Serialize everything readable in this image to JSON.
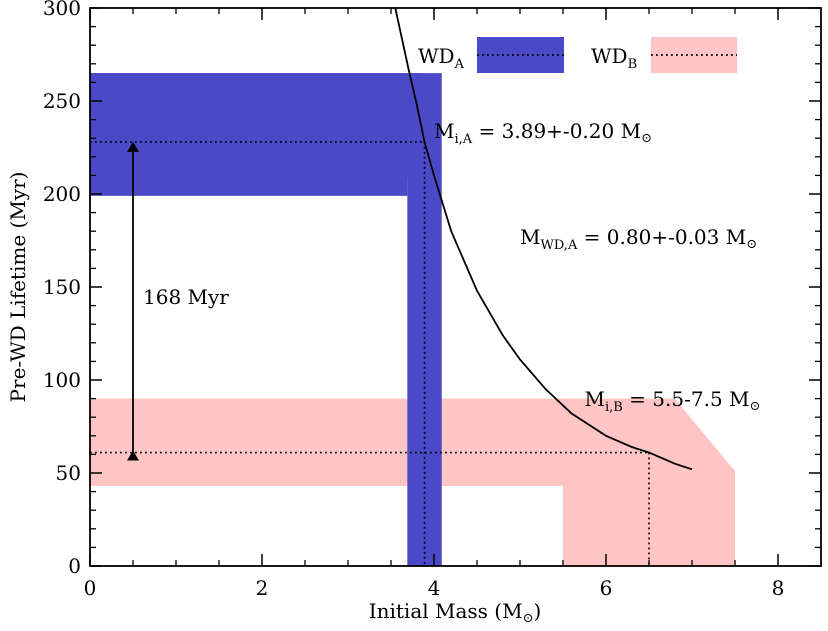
{
  "chart_data": {
    "type": "area",
    "xlabel": {
      "main": "Initial Mass (M",
      "sub": "⊙",
      "close": ")"
    },
    "ylabel": "Pre-WD Lifetime (Myr)",
    "xlim": [
      0,
      8.5
    ],
    "ylim": [
      0,
      300
    ],
    "xticks": [
      0,
      2,
      4,
      6,
      8
    ],
    "xtick_labels": [
      "0",
      "2",
      "4",
      "6",
      "8"
    ],
    "yticks": [
      0,
      50,
      100,
      150,
      200,
      250,
      300
    ],
    "ytick_labels": [
      "0",
      "50",
      "100",
      "150",
      "200",
      "250",
      "300"
    ],
    "legend": {
      "placement": "top-right",
      "entries": [
        {
          "name": "WD",
          "sub": "A",
          "color": "#4a4ac8"
        },
        {
          "name": "WD",
          "sub": "B",
          "color": "#ffc4c4"
        }
      ]
    },
    "colors": {
      "wd_a": "#4a4ac8",
      "wd_b": "#ffc4c4",
      "curve": "#000000"
    },
    "lifetime_curve": {
      "x": [
        3.55,
        3.7,
        3.8,
        3.89,
        4.0,
        4.2,
        4.5,
        4.8,
        5.0,
        5.3,
        5.6,
        6.0,
        6.3,
        6.5,
        6.8,
        7.0
      ],
      "y": [
        300,
        268,
        248,
        228,
        210,
        180,
        148,
        124,
        111,
        95,
        82,
        70,
        64,
        61,
        55,
        52
      ]
    },
    "wd_a": {
      "y_band": [
        199,
        265
      ],
      "y_band_inner": [
        209,
        265
      ],
      "x_band": [
        3.69,
        4.09
      ],
      "mass": 3.89,
      "lifetime": 228
    },
    "wd_b": {
      "y_band": [
        43,
        90
      ],
      "x_band": [
        5.5,
        7.5
      ],
      "top_right_y": 51,
      "mass": 6.5,
      "lifetime": 61
    },
    "arrow": {
      "x": 0.5,
      "y_from": 61,
      "y_to": 228,
      "label": "168 Myr"
    },
    "annotations": {
      "mi_a": {
        "pre": "M",
        "sub": "i,A",
        "text": " = 3.89+-0.20 M",
        "sun": "⊙",
        "x": 4.0,
        "y": 230
      },
      "mwd_a": {
        "pre": "M",
        "sub": "WD,A",
        "text": " = 0.80+-0.03 M",
        "sun": "⊙",
        "x": 5.0,
        "y": 173
      },
      "mi_b": {
        "pre": "M",
        "sub": "i,B",
        "text": " = 5.5-7.5 M",
        "sun": "⊙",
        "x": 5.75,
        "y": 86
      }
    }
  }
}
